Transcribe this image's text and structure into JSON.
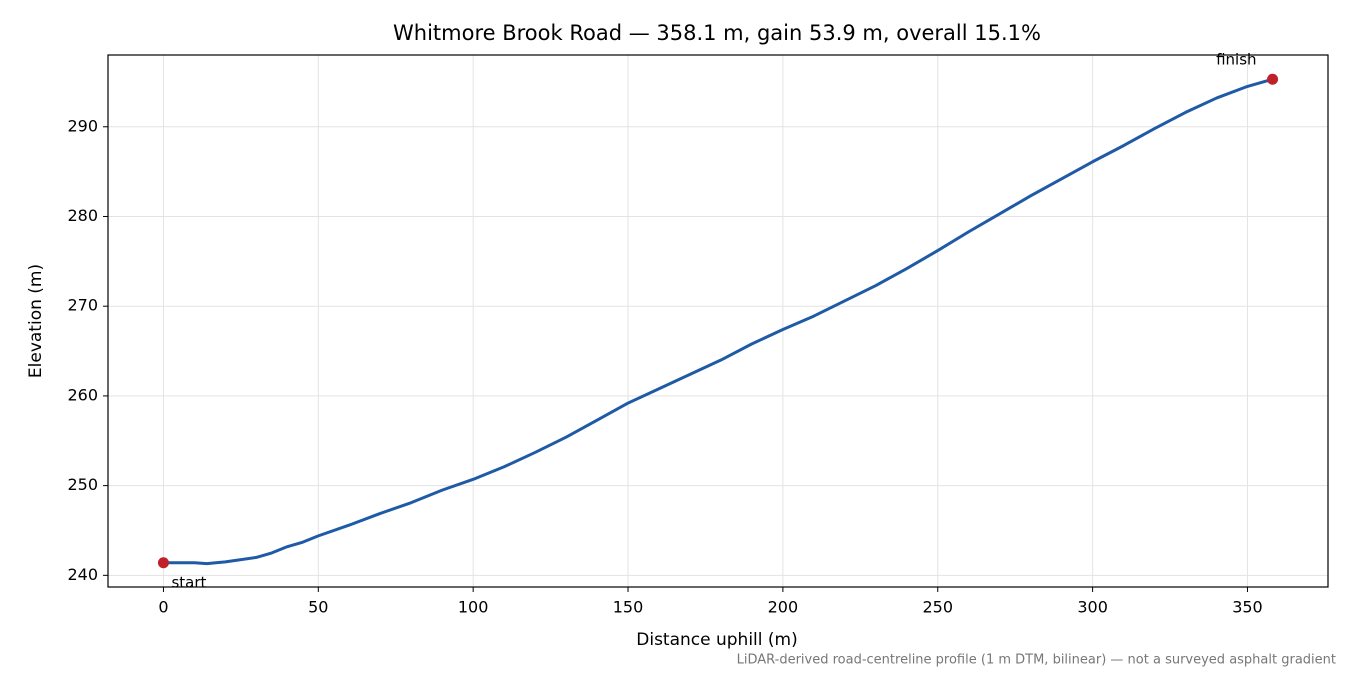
{
  "chart_data": {
    "type": "line",
    "title": "Whitmore Brook Road — 358.1 m, gain 53.9 m, overall 15.1%",
    "x_label": "Distance uphill (m)",
    "y_label": "Elevation (m)",
    "note": "LiDAR-derived road-centreline profile (1 m DTM, bilinear) — not a surveyed asphalt gradient",
    "annotations": [
      "start",
      "finish"
    ],
    "x": [
      0,
      10,
      14,
      20,
      30,
      35,
      40,
      45,
      50,
      60,
      70,
      80,
      90,
      100,
      110,
      120,
      130,
      140,
      150,
      160,
      170,
      180,
      190,
      200,
      210,
      220,
      230,
      240,
      250,
      260,
      270,
      280,
      290,
      300,
      310,
      320,
      330,
      340,
      350,
      358.1
    ],
    "series": [
      {
        "color": "#1f5aa6",
        "values": [
          241.4,
          241.4,
          241.3,
          241.5,
          242.0,
          242.5,
          243.2,
          243.7,
          244.4,
          245.6,
          246.9,
          248.1,
          249.5,
          250.7,
          252.1,
          253.7,
          255.4,
          257.3,
          259.2,
          260.8,
          262.4,
          264.0,
          265.8,
          267.4,
          268.9,
          270.6,
          272.3,
          274.2,
          276.2,
          278.3,
          280.3,
          282.3,
          284.2,
          286.1,
          287.9,
          289.8,
          291.6,
          293.2,
          294.5,
          295.3
        ]
      }
    ],
    "endpoint_color": "#c0202a",
    "xlim": [
      -17.9,
      376.0
    ],
    "ylim": [
      238.7,
      298.0
    ],
    "xticks": [
      0,
      50,
      100,
      150,
      200,
      250,
      300,
      350
    ],
    "yticks": [
      240,
      250,
      260,
      270,
      280,
      290
    ],
    "grid": true
  }
}
